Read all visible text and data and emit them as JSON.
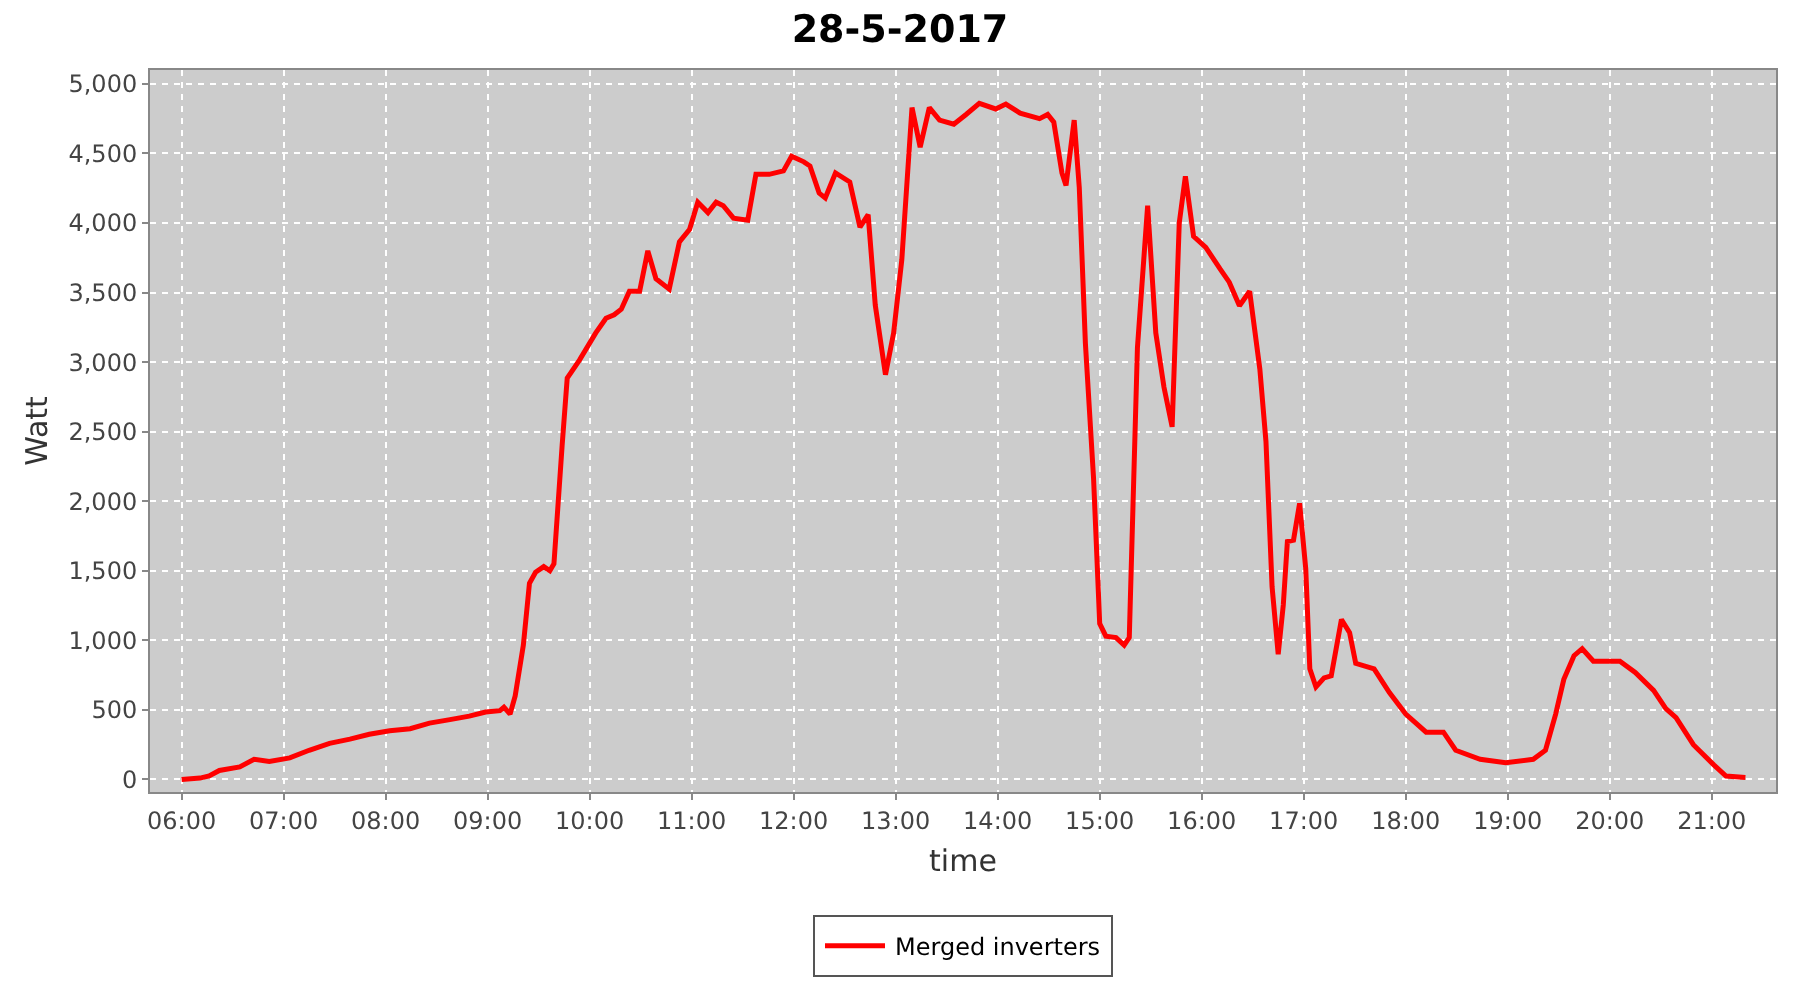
{
  "chart_data": {
    "type": "line",
    "title": "28-5-2017",
    "xlabel": "time",
    "ylabel": "Watt",
    "x": [
      6.0,
      6.18,
      6.27,
      6.37,
      6.57,
      6.71,
      6.86,
      7.06,
      7.25,
      7.45,
      7.65,
      7.84,
      8.04,
      8.24,
      8.43,
      8.63,
      8.82,
      8.98,
      9.12,
      9.16,
      9.22,
      9.27,
      9.35,
      9.41,
      9.47,
      9.55,
      9.61,
      9.65,
      9.73,
      9.78,
      9.9,
      10.06,
      10.16,
      10.24,
      10.31,
      10.39,
      10.49,
      10.57,
      10.65,
      10.78,
      10.88,
      10.98,
      11.06,
      11.16,
      11.24,
      11.31,
      11.41,
      11.55,
      11.63,
      11.76,
      11.9,
      11.98,
      12.1,
      12.16,
      12.25,
      12.31,
      12.41,
      12.55,
      12.65,
      12.73,
      12.8,
      12.9,
      12.98,
      13.06,
      13.16,
      13.24,
      13.33,
      13.43,
      13.57,
      13.69,
      13.82,
      13.98,
      14.08,
      14.22,
      14.41,
      14.49,
      14.55,
      14.63,
      14.67,
      14.75,
      14.8,
      14.86,
      14.94,
      15.0,
      15.06,
      15.16,
      15.24,
      15.29,
      15.37,
      15.47,
      15.55,
      15.63,
      15.71,
      15.78,
      15.84,
      15.92,
      16.04,
      16.18,
      16.27,
      16.37,
      16.47,
      16.57,
      16.63,
      16.69,
      16.75,
      16.8,
      16.84,
      16.9,
      16.96,
      17.02,
      17.06,
      17.12,
      17.2,
      17.27,
      17.37,
      17.45,
      17.51,
      17.69,
      17.84,
      18.0,
      18.2,
      18.37,
      18.49,
      18.73,
      18.98,
      19.25,
      19.37,
      19.47,
      19.55,
      19.65,
      19.73,
      19.84,
      20.1,
      20.25,
      20.43,
      20.55,
      20.65,
      20.82,
      21.02,
      21.14,
      21.33
    ],
    "series": [
      {
        "name": "Merged inverters",
        "color": "#ff0000",
        "values": [
          0,
          10,
          25,
          65,
          90,
          145,
          130,
          155,
          210,
          260,
          290,
          325,
          350,
          365,
          405,
          430,
          455,
          485,
          495,
          520,
          470,
          600,
          965,
          1410,
          1490,
          1530,
          1500,
          1550,
          2400,
          2885,
          3015,
          3210,
          3315,
          3340,
          3380,
          3510,
          3510,
          3800,
          3600,
          3525,
          3865,
          3955,
          4150,
          4075,
          4150,
          4125,
          4035,
          4020,
          4350,
          4350,
          4375,
          4480,
          4440,
          4410,
          4215,
          4180,
          4360,
          4295,
          3970,
          4060,
          3410,
          2910,
          3210,
          3735,
          4830,
          4545,
          4830,
          4740,
          4710,
          4780,
          4860,
          4820,
          4855,
          4790,
          4750,
          4780,
          4725,
          4360,
          4270,
          4740,
          4255,
          3135,
          2165,
          1120,
          1030,
          1020,
          965,
          1020,
          3105,
          4125,
          3210,
          2820,
          2535,
          4000,
          4335,
          3905,
          3825,
          3670,
          3575,
          3405,
          3510,
          2950,
          2430,
          1385,
          900,
          1255,
          1710,
          1720,
          1985,
          1515,
          795,
          665,
          730,
          745,
          1150,
          1055,
          835,
          795,
          625,
          470,
          340,
          340,
          210,
          145,
          120,
          145,
          210,
          470,
          720,
          890,
          940,
          850,
          850,
          770,
          640,
          510,
          445,
          250,
          105,
          25,
          15
        ]
      }
    ],
    "xlim": [
      5.69,
      21.63
    ],
    "xticks": [
      {
        "value": 6,
        "label": "06:00"
      },
      {
        "value": 7,
        "label": "07:00"
      },
      {
        "value": 8,
        "label": "08:00"
      },
      {
        "value": 9,
        "label": "09:00"
      },
      {
        "value": 10,
        "label": "10:00"
      },
      {
        "value": 11,
        "label": "11:00"
      },
      {
        "value": 12,
        "label": "12:00"
      },
      {
        "value": 13,
        "label": "13:00"
      },
      {
        "value": 14,
        "label": "14:00"
      },
      {
        "value": 15,
        "label": "15:00"
      },
      {
        "value": 16,
        "label": "16:00"
      },
      {
        "value": 17,
        "label": "17:00"
      },
      {
        "value": 18,
        "label": "18:00"
      },
      {
        "value": 19,
        "label": "19:00"
      },
      {
        "value": 20,
        "label": "20:00"
      },
      {
        "value": 21,
        "label": "21:00"
      }
    ],
    "ylim": [
      -90,
      5100
    ],
    "yticks": [
      0,
      500,
      {
        "value": 1000,
        "label": "1,000"
      },
      {
        "value": 1500,
        "label": "1,500"
      },
      {
        "value": 2000,
        "label": "2,000"
      },
      {
        "value": 2500,
        "label": "2,500"
      },
      {
        "value": 3000,
        "label": "3,000"
      },
      {
        "value": 3500,
        "label": "3,500"
      },
      {
        "value": 4000,
        "label": "4,000"
      },
      {
        "value": 4500,
        "label": "4,500"
      },
      {
        "value": 5000,
        "label": "5,000"
      }
    ],
    "grid": true,
    "legend": "bottom",
    "line_style": "solid"
  }
}
